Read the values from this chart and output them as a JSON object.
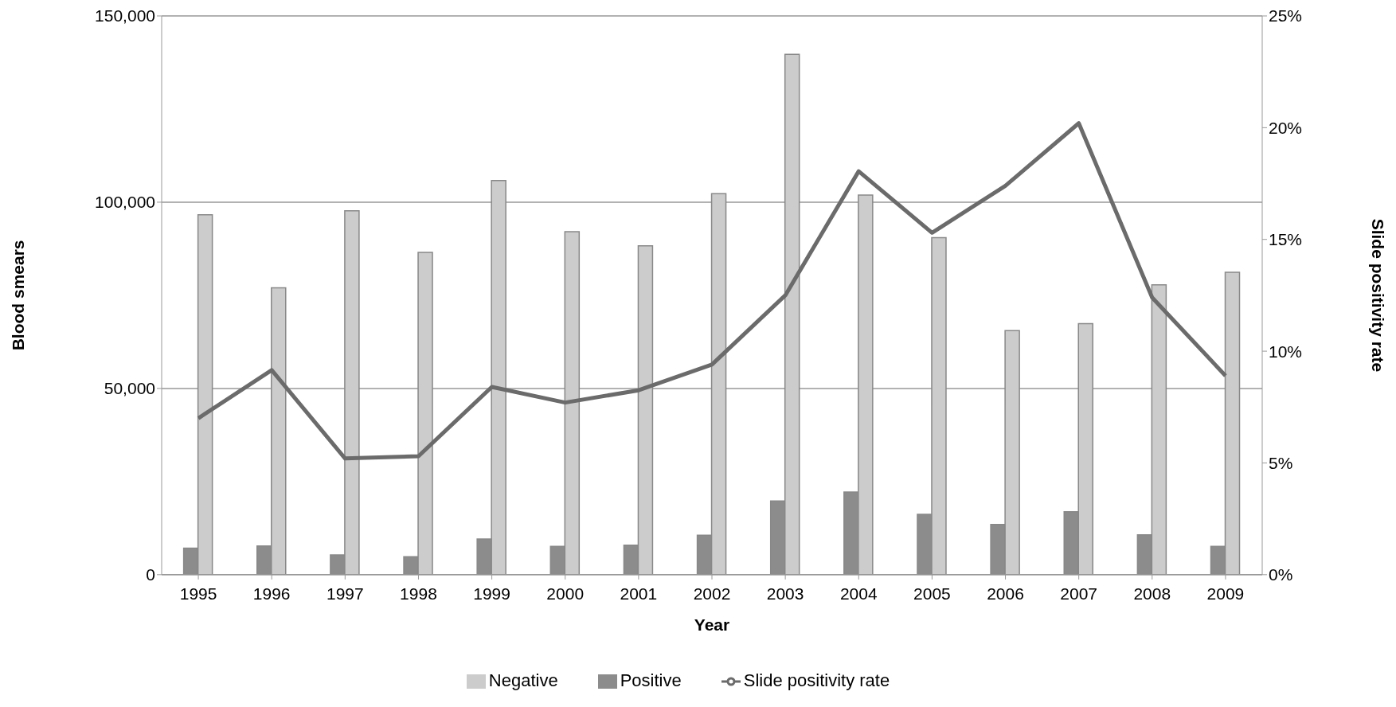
{
  "chart_data": {
    "type": "bar",
    "xlabel": "Year",
    "ylabel": "Blood smears",
    "y2label": "Slide positivity rate",
    "categories": [
      "1995",
      "1996",
      "1997",
      "1998",
      "1999",
      "2000",
      "2001",
      "2002",
      "2003",
      "2004",
      "2005",
      "2006",
      "2007",
      "2008",
      "2009"
    ],
    "series": [
      {
        "name": "Positive",
        "color": "#8c8c8c",
        "values": [
          7100,
          7700,
          5300,
          4800,
          9600,
          7600,
          7900,
          10600,
          19800,
          22200,
          16200,
          13500,
          16900,
          10700,
          7600
        ]
      },
      {
        "name": "Negative",
        "color": "#cccccc",
        "values": [
          96600,
          77000,
          97700,
          86500,
          105800,
          92100,
          88300,
          102300,
          139700,
          101900,
          90500,
          65500,
          67400,
          77800,
          81200
        ]
      },
      {
        "name": "Slide positivity rate",
        "type": "line",
        "axis": "y2",
        "color": "#6b6b6b",
        "values": [
          7.0,
          9.15,
          5.2,
          5.3,
          8.4,
          7.7,
          8.25,
          9.4,
          12.5,
          18.05,
          15.3,
          17.4,
          20.2,
          12.4,
          8.9
        ]
      }
    ],
    "ylim": [
      0,
      150000
    ],
    "yticks": [
      {
        "value": 0,
        "label": "0"
      },
      {
        "value": 50000,
        "label": "50,000"
      },
      {
        "value": 100000,
        "label": "100,000"
      },
      {
        "value": 150000,
        "label": "150,000"
      }
    ],
    "y2lim": [
      0,
      25
    ],
    "y2ticks": [
      {
        "value": 0,
        "label": "0%"
      },
      {
        "value": 5,
        "label": "5%"
      },
      {
        "value": 10,
        "label": "10%"
      },
      {
        "value": 15,
        "label": "15%"
      },
      {
        "value": 20,
        "label": "20%"
      },
      {
        "value": 25,
        "label": "25%"
      }
    ],
    "grid": "y",
    "legend": "bottom",
    "marker": "none",
    "line_style": "solid"
  }
}
